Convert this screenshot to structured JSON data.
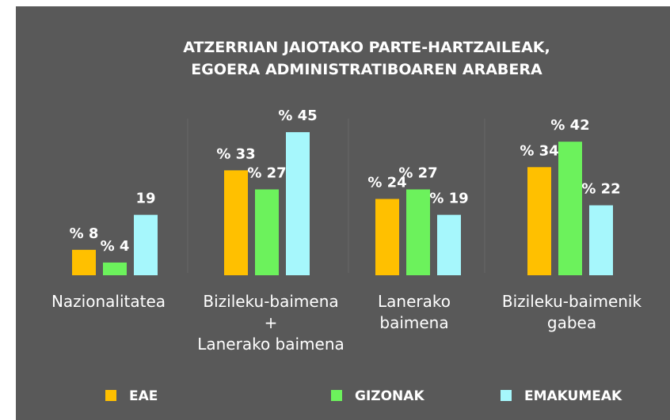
{
  "chart_data": {
    "type": "bar",
    "title": "ATZERRIAN JAIOTAKO PARTE-HARTZAILEAK,\nEGOERA ADMINISTRATIBOAREN ARABERA",
    "categories": [
      "Nazionalitatea",
      "Bizileku-baimena\n+\nLanerako baimena",
      "Lanerako\nbaimena",
      "Bizileku-baimenik\ngabea"
    ],
    "series": [
      {
        "name": "EAE",
        "color": "#ffc000",
        "values": [
          8,
          33,
          24,
          34
        ],
        "value_labels": [
          "% 8",
          "% 33",
          "% 24",
          "% 34"
        ]
      },
      {
        "name": "GIZONAK",
        "color": "#6cf25c",
        "values": [
          4,
          27,
          27,
          42
        ],
        "value_labels": [
          "% 4",
          "% 27",
          "% 27",
          "% 42"
        ]
      },
      {
        "name": "EMAKUMEAK",
        "color": "#a6f7fc",
        "values": [
          19,
          45,
          19,
          22
        ],
        "value_labels": [
          "19",
          "% 45",
          "% 19",
          "% 22"
        ]
      }
    ],
    "ylim": [
      0,
      50
    ],
    "legend": "bottom"
  }
}
